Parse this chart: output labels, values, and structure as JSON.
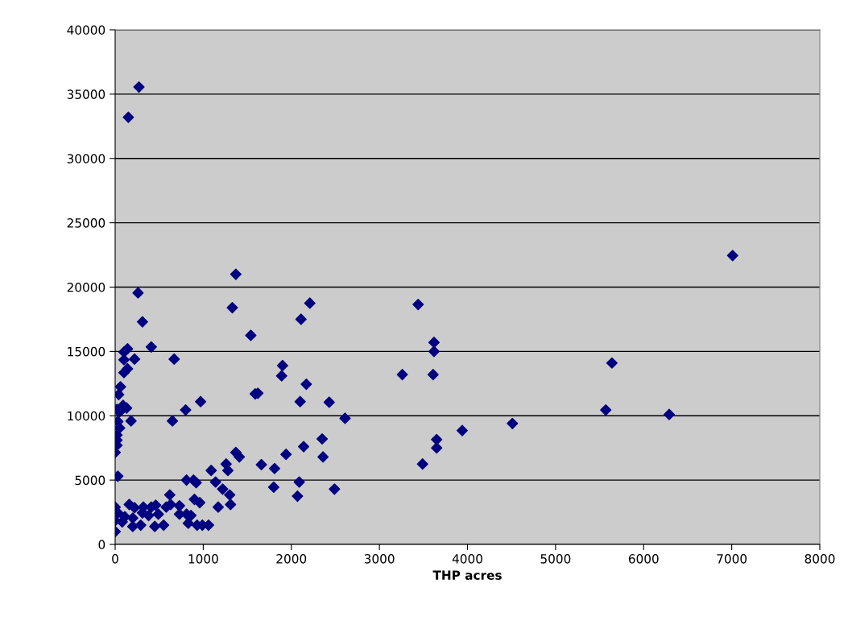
{
  "chart_data": {
    "type": "scatter",
    "xlabel": "THP acres",
    "xlim": [
      0,
      8000
    ],
    "xticks": [
      0,
      1000,
      2000,
      3000,
      4000,
      5000,
      6000,
      7000,
      8000
    ],
    "ylim": [
      0,
      40000
    ],
    "yticks": [
      0,
      5000,
      10000,
      15000,
      20000,
      25000,
      30000,
      35000,
      40000
    ],
    "grid": "y",
    "marker": "diamond",
    "series": [
      {
        "color": "#000080",
        "x": [
          270,
          150,
          1370,
          260,
          1330,
          310,
          2210,
          2110,
          3440,
          1540,
          410,
          140,
          100,
          100,
          220,
          670,
          140,
          100,
          3620,
          3620,
          1900,
          1890,
          2170,
          3260,
          3610,
          5640,
          7010,
          60,
          40,
          90,
          20,
          50,
          130,
          30,
          180,
          50,
          20,
          20,
          20,
          0,
          650,
          800,
          970,
          1590,
          1620,
          2100,
          2430,
          2610,
          4510,
          5570,
          6290,
          3940,
          30,
          1370,
          1410,
          1660,
          1260,
          1280,
          1090,
          1940,
          2350,
          2140,
          2360,
          1810,
          3650,
          3650,
          3490,
          1800,
          2090,
          2070,
          2490,
          810,
          890,
          920,
          1140,
          1220,
          1300,
          1310,
          1170,
          900,
          960,
          620,
          730,
          630,
          580,
          460,
          410,
          320,
          160,
          220,
          0,
          30,
          110,
          200,
          310,
          380,
          490,
          810,
          860,
          730,
          0,
          80,
          200,
          290,
          450,
          550,
          830,
          930,
          990,
          1060,
          0
        ],
        "values": [
          35550,
          33200,
          21000,
          19550,
          18400,
          17300,
          18750,
          17500,
          18650,
          16250,
          15350,
          15200,
          14950,
          14350,
          14400,
          14400,
          13650,
          13350,
          15700,
          15000,
          13900,
          13100,
          12450,
          13200,
          13200,
          14100,
          22450,
          12250,
          11650,
          10800,
          10500,
          10300,
          10600,
          9550,
          9600,
          9050,
          8500,
          8100,
          7700,
          7150,
          9600,
          10450,
          11100,
          11700,
          11750,
          11100,
          11050,
          9800,
          9400,
          10450,
          10100,
          8850,
          5300,
          7150,
          6800,
          6200,
          6250,
          5750,
          5750,
          7000,
          8200,
          7600,
          6800,
          5900,
          8150,
          7500,
          6250,
          4450,
          4850,
          3750,
          4300,
          5000,
          5000,
          4800,
          4850,
          4300,
          3850,
          3100,
          2900,
          3500,
          3250,
          3850,
          3000,
          3100,
          2900,
          3050,
          2900,
          2900,
          3100,
          2850,
          2900,
          2450,
          2150,
          2050,
          2450,
          2250,
          2350,
          2350,
          2250,
          2350,
          1850,
          1750,
          1400,
          1500,
          1400,
          1500,
          1650,
          1500,
          1500,
          1500,
          1000
        ]
      }
    ]
  }
}
